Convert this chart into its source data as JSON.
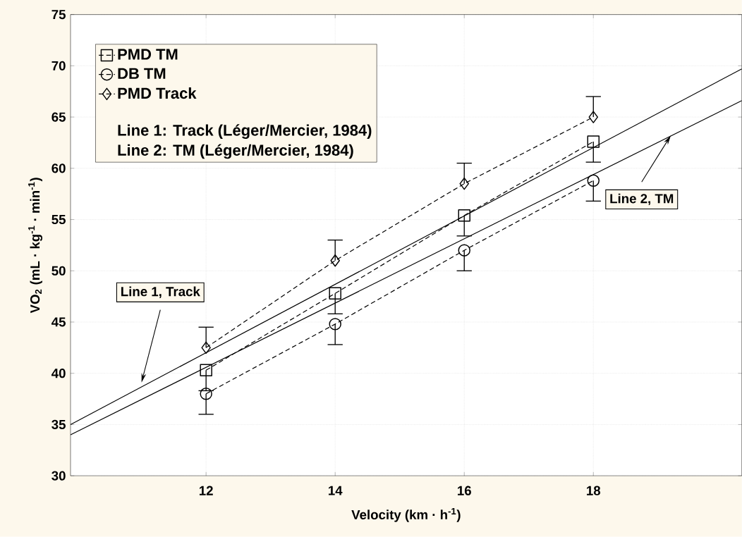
{
  "chart_data": {
    "type": "line",
    "xlabel": "Velocity (km · h$^{-1}$)",
    "ylabel": "VO$_{2}$ (mL · kg$^{-1}$ · min$^{-1}$)",
    "xlim": [
      9.9,
      20.3
    ],
    "ylim": [
      30,
      75
    ],
    "xticks": [
      12,
      14,
      16,
      18
    ],
    "yticks": [
      30,
      35,
      40,
      45,
      50,
      55,
      60,
      65,
      70,
      75
    ],
    "grid": true,
    "legend": "top left",
    "series": [
      {
        "name": "PMD TM",
        "color": "#000000",
        "marker": "square",
        "line_style": "dashed",
        "x": [
          12,
          14,
          16,
          18
        ],
        "values": [
          40.3,
          47.8,
          55.4,
          62.6
        ],
        "errors": [
          [
            38.3,
            40.3
          ],
          [
            45.8,
            47.8
          ],
          [
            53.4,
            55.4
          ],
          [
            60.6,
            62.6
          ]
        ]
      },
      {
        "name": "DB TM",
        "color": "#000000",
        "marker": "circle",
        "line_style": "dashed",
        "x": [
          12,
          14,
          16,
          18
        ],
        "values": [
          38.0,
          44.8,
          52.0,
          58.8
        ],
        "errors": [
          [
            36.0,
            38.0
          ],
          [
            42.8,
            44.8
          ],
          [
            50.0,
            52.0
          ],
          [
            56.8,
            58.8
          ]
        ]
      },
      {
        "name": "PMD Track",
        "color": "#000000",
        "marker": "diamond",
        "line_style": "dashed",
        "x": [
          12,
          14,
          16,
          18
        ],
        "values": [
          42.5,
          51.0,
          58.5,
          65.0
        ],
        "errors": [
          [
            42.5,
            44.5
          ],
          [
            51.0,
            53.0
          ],
          [
            58.5,
            60.5
          ],
          [
            65.0,
            67.0
          ]
        ]
      },
      {
        "color": "#000000",
        "marker": "none",
        "line_style": "solid",
        "x": [
          9.9,
          20.3
        ],
        "values": [
          35.0,
          69.7
        ]
      },
      {
        "color": "#000000",
        "marker": "none",
        "line_style": "solid",
        "x": [
          9.9,
          20.3
        ],
        "values": [
          34.0,
          66.6
        ]
      }
    ],
    "annotations": [
      "Line 1: Track (Léger/Mercier, 1984)",
      "Line 2: TM (Léger/Mercier, 1984)",
      {
        "text": "Line 1, Track",
        "x": 11.0,
        "y": 39.1
      },
      {
        "text": "Line 2, TM",
        "x": 19.2,
        "y": 63.2
      }
    ]
  }
}
